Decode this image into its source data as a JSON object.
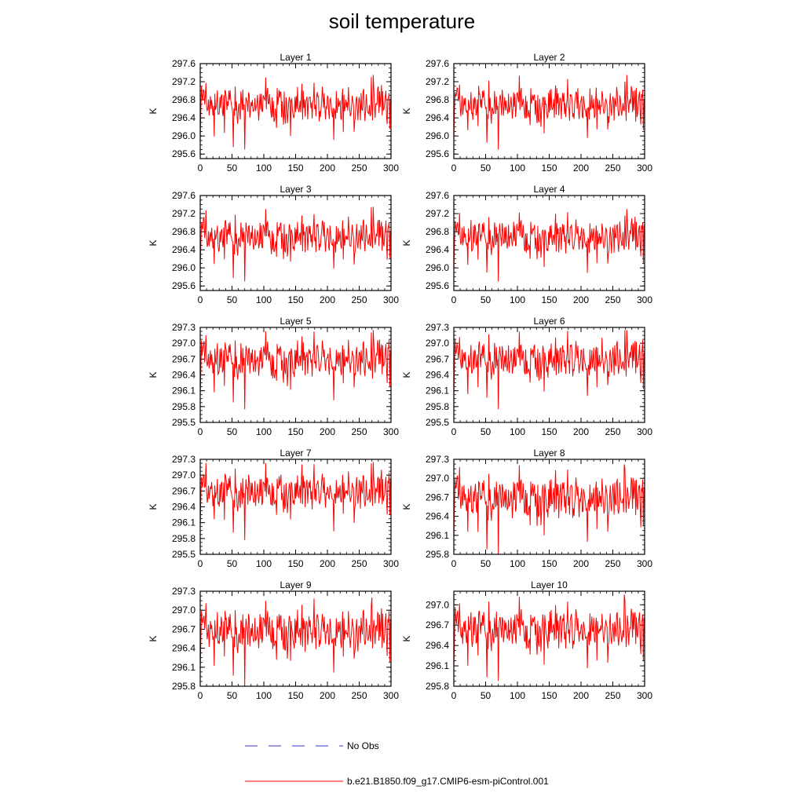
{
  "title": "soil temperature",
  "series_colors": {
    "model": "#ff0000",
    "obs": "#3333cc"
  },
  "chart_data": [
    {
      "type": "line",
      "title": "Layer 1",
      "ylabel": "K",
      "xlabel": "",
      "xlim": [
        0,
        300
      ],
      "ylim": [
        295.5,
        297.6
      ],
      "yticks": [
        "297.6",
        "297.2",
        "296.8",
        "296.4",
        "296.0",
        "295.6"
      ],
      "xticks": [
        "0",
        "50",
        "100",
        "150",
        "200",
        "250",
        "300"
      ],
      "series": [
        {
          "name": "b.e21.B1850.f09_g17.CMIP6-esm-piControl.001",
          "mean": 296.7,
          "min": 295.7,
          "max": 297.35,
          "min_at": 70,
          "max_at": 272
        }
      ]
    },
    {
      "type": "line",
      "title": "Layer 2",
      "ylabel": "K",
      "xlabel": "",
      "xlim": [
        0,
        300
      ],
      "ylim": [
        295.5,
        297.6
      ],
      "yticks": [
        "297.6",
        "297.2",
        "296.8",
        "296.4",
        "296.0",
        "295.6"
      ],
      "xticks": [
        "0",
        "50",
        "100",
        "150",
        "200",
        "250",
        "300"
      ],
      "series": [
        {
          "name": "b.e21.B1850.f09_g17.CMIP6-esm-piControl.001",
          "mean": 296.7,
          "min": 295.7,
          "max": 297.35,
          "min_at": 70,
          "max_at": 272
        }
      ]
    },
    {
      "type": "line",
      "title": "Layer 3",
      "ylabel": "K",
      "xlabel": "",
      "xlim": [
        0,
        300
      ],
      "ylim": [
        295.5,
        297.6
      ],
      "yticks": [
        "297.6",
        "297.2",
        "296.8",
        "296.4",
        "296.0",
        "295.6"
      ],
      "xticks": [
        "0",
        "50",
        "100",
        "150",
        "200",
        "250",
        "300"
      ],
      "series": [
        {
          "name": "b.e21.B1850.f09_g17.CMIP6-esm-piControl.001",
          "mean": 296.7,
          "min": 295.7,
          "max": 297.35,
          "min_at": 70,
          "max_at": 272
        }
      ]
    },
    {
      "type": "line",
      "title": "Layer 4",
      "ylabel": "K",
      "xlabel": "",
      "xlim": [
        0,
        300
      ],
      "ylim": [
        295.5,
        297.6
      ],
      "yticks": [
        "297.6",
        "297.2",
        "296.8",
        "296.4",
        "296.0",
        "295.6"
      ],
      "xticks": [
        "0",
        "50",
        "100",
        "150",
        "200",
        "250",
        "300"
      ],
      "series": [
        {
          "name": "b.e21.B1850.f09_g17.CMIP6-esm-piControl.001",
          "mean": 296.7,
          "min": 295.7,
          "max": 297.3,
          "min_at": 70,
          "max_at": 272
        }
      ]
    },
    {
      "type": "line",
      "title": "Layer 5",
      "ylabel": "K",
      "xlabel": "",
      "xlim": [
        0,
        300
      ],
      "ylim": [
        295.5,
        297.3
      ],
      "yticks": [
        "297.3",
        "297.0",
        "296.7",
        "296.4",
        "296.1",
        "295.8",
        "295.5"
      ],
      "xticks": [
        "0",
        "50",
        "100",
        "150",
        "200",
        "250",
        "300"
      ],
      "series": [
        {
          "name": "b.e21.B1850.f09_g17.CMIP6-esm-piControl.001",
          "mean": 296.7,
          "min": 295.75,
          "max": 297.25,
          "min_at": 70,
          "max_at": 272
        }
      ]
    },
    {
      "type": "line",
      "title": "Layer 6",
      "ylabel": "K",
      "xlabel": "",
      "xlim": [
        0,
        300
      ],
      "ylim": [
        295.5,
        297.3
      ],
      "yticks": [
        "297.3",
        "297.0",
        "296.7",
        "296.4",
        "296.1",
        "295.8",
        "295.5"
      ],
      "xticks": [
        "0",
        "50",
        "100",
        "150",
        "200",
        "250",
        "300"
      ],
      "series": [
        {
          "name": "b.e21.B1850.f09_g17.CMIP6-esm-piControl.001",
          "mean": 296.7,
          "min": 295.75,
          "max": 297.25,
          "min_at": 70,
          "max_at": 272
        }
      ]
    },
    {
      "type": "line",
      "title": "Layer 7",
      "ylabel": "K",
      "xlabel": "",
      "xlim": [
        0,
        300
      ],
      "ylim": [
        295.5,
        297.3
      ],
      "yticks": [
        "297.3",
        "297.0",
        "296.7",
        "296.4",
        "296.1",
        "295.8",
        "295.5"
      ],
      "xticks": [
        "0",
        "50",
        "100",
        "150",
        "200",
        "250",
        "300"
      ],
      "series": [
        {
          "name": "b.e21.B1850.f09_g17.CMIP6-esm-piControl.001",
          "mean": 296.7,
          "min": 295.77,
          "max": 297.25,
          "min_at": 70,
          "max_at": 272
        }
      ]
    },
    {
      "type": "line",
      "title": "Layer 8",
      "ylabel": "K",
      "xlabel": "",
      "xlim": [
        0,
        300
      ],
      "ylim": [
        295.8,
        297.3
      ],
      "yticks": [
        "297.3",
        "297.0",
        "296.7",
        "296.4",
        "296.1",
        "295.8"
      ],
      "xticks": [
        "0",
        "50",
        "100",
        "150",
        "200",
        "250",
        "300"
      ],
      "series": [
        {
          "name": "b.e21.B1850.f09_g17.CMIP6-esm-piControl.001",
          "mean": 296.7,
          "min": 295.8,
          "max": 297.22,
          "min_at": 70,
          "max_at": 268
        }
      ]
    },
    {
      "type": "line",
      "title": "Layer 9",
      "ylabel": "K",
      "xlabel": "",
      "xlim": [
        0,
        300
      ],
      "ylim": [
        295.8,
        297.3
      ],
      "yticks": [
        "297.3",
        "297.0",
        "296.7",
        "296.4",
        "296.1",
        "295.8"
      ],
      "xticks": [
        "0",
        "50",
        "100",
        "150",
        "200",
        "250",
        "300"
      ],
      "series": [
        {
          "name": "b.e21.B1850.f09_g17.CMIP6-esm-piControl.001",
          "mean": 296.68,
          "min": 295.83,
          "max": 297.2,
          "min_at": 70,
          "max_at": 270
        }
      ]
    },
    {
      "type": "line",
      "title": "Layer 10",
      "ylabel": "K",
      "xlabel": "",
      "xlim": [
        0,
        300
      ],
      "ylim": [
        295.8,
        297.2
      ],
      "yticks": [
        "297.0",
        "296.7",
        "296.4",
        "296.1",
        "295.8"
      ],
      "xticks": [
        "0",
        "50",
        "100",
        "150",
        "200",
        "250",
        "300"
      ],
      "series": [
        {
          "name": "b.e21.B1850.f09_g17.CMIP6-esm-piControl.001",
          "mean": 296.65,
          "min": 295.88,
          "max": 297.15,
          "min_at": 70,
          "max_at": 268
        }
      ]
    }
  ],
  "legend": [
    {
      "label": "No Obs",
      "style": "dashed",
      "color": "#3333cc"
    },
    {
      "label": "b.e21.B1850.f09_g17.CMIP6-esm-piControl.001",
      "style": "solid",
      "color": "#ff0000"
    }
  ]
}
